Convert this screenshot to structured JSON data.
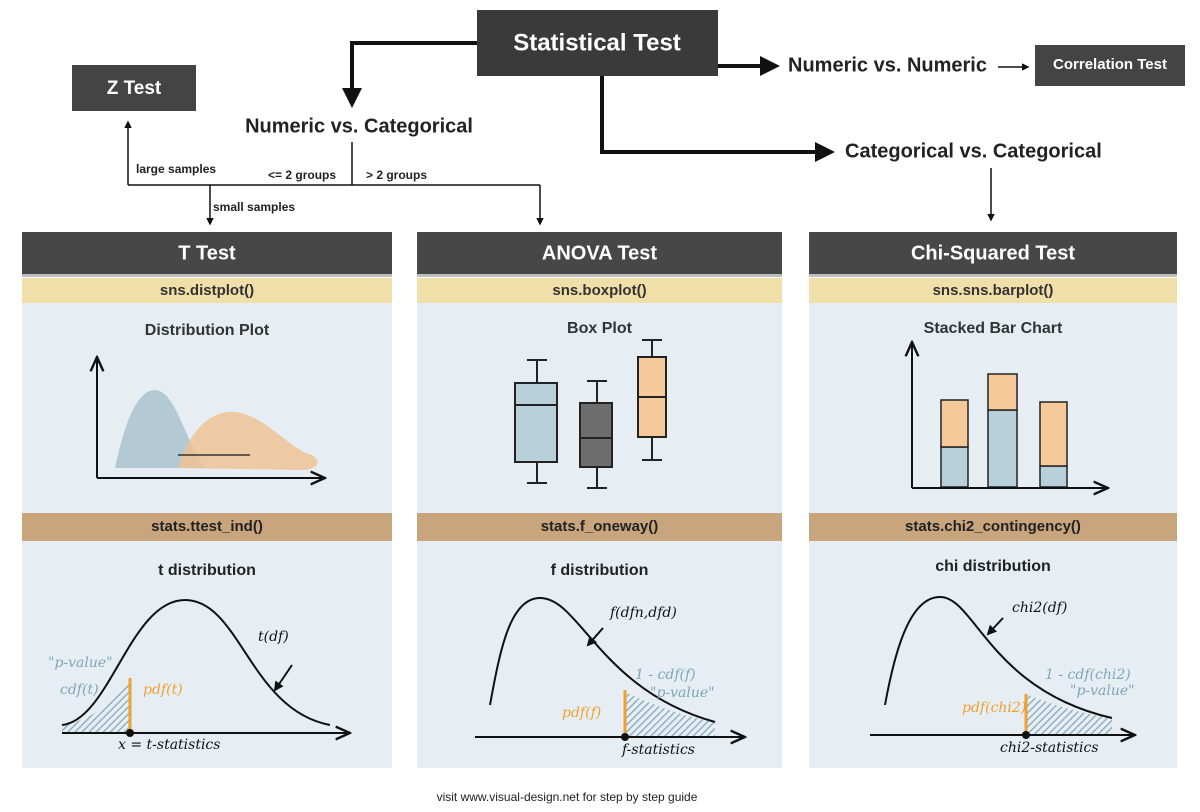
{
  "title": "Statistical Test",
  "nodes": {
    "z_test": "Z Test",
    "correlation_test": "Correlation Test"
  },
  "branches": {
    "numeric_vs_categorical": "Numeric vs. Categorical",
    "numeric_vs_numeric": "Numeric vs. Numeric",
    "categorical_vs_categorical": "Categorical vs. Categorical"
  },
  "edge_labels": {
    "large_samples": "large samples",
    "le_2_groups": "<= 2 groups",
    "gt_2_groups": "> 2 groups",
    "small_samples": "small samples"
  },
  "panels": [
    {
      "title": "T Test",
      "plot_function": "sns.distplot()",
      "plot_title": "Distribution Plot",
      "stats_function": "stats.ttest_ind()",
      "distribution_title": "t distribution",
      "annotations": [
        "\"p-value\"",
        "cdf(t)",
        "pdf(t)",
        "t(df)",
        "x = t-statistics"
      ]
    },
    {
      "title": "ANOVA Test",
      "plot_function": "sns.boxplot()",
      "plot_title": "Box Plot",
      "stats_function": "stats.f_oneway()",
      "distribution_title": "f distribution",
      "annotations": [
        "f(dfn,dfd)",
        "1 - cdf(f)",
        "\"p-value\"",
        "pdf(f)",
        "f-statistics"
      ]
    },
    {
      "title": "Chi-Squared Test",
      "plot_function": "sns.sns.barplot()",
      "plot_title": "Stacked Bar Chart",
      "stats_function": "stats.chi2_contingency()",
      "distribution_title": "chi distribution",
      "annotations": [
        "chi2(df)",
        "1 - cdf(chi2)",
        "\"p-value\"",
        "pdf(chi2)",
        "chi2-statistics"
      ]
    }
  ],
  "footer": "visit www.visual-design.net for step by step guide"
}
